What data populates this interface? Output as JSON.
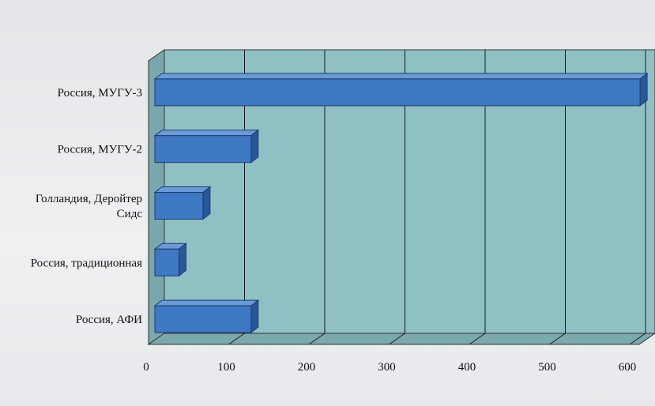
{
  "chart_data": {
    "type": "bar",
    "orientation": "horizontal",
    "categories": [
      "Россия, МУГУ-3",
      "Россия, МУГУ-2",
      "Голландия, Деройтер Сидс",
      "Россия, традиционная",
      "Россия, АФИ"
    ],
    "category_lines": [
      [
        "Россия, МУГУ-3"
      ],
      [
        "Россия, МУГУ-2"
      ],
      [
        "Голландия, Деройтер",
        "Сидс"
      ],
      [
        "Россия, традиционная"
      ],
      [
        "Россия, АФИ"
      ]
    ],
    "values": [
      605,
      120,
      60,
      30,
      120
    ],
    "xlim": [
      0,
      600
    ],
    "xticks": [
      0,
      100,
      200,
      300,
      400,
      500,
      600
    ],
    "grid": true,
    "title": "",
    "xlabel": "",
    "ylabel": "",
    "colors": {
      "bar_front": "#3f78c4",
      "bar_top": "#6b9ad8",
      "bar_side": "#2a5896",
      "plot_wall": "#8fc0c4",
      "plot_floor": "#7aa9ae",
      "gridline": "#1a1a1a"
    }
  }
}
